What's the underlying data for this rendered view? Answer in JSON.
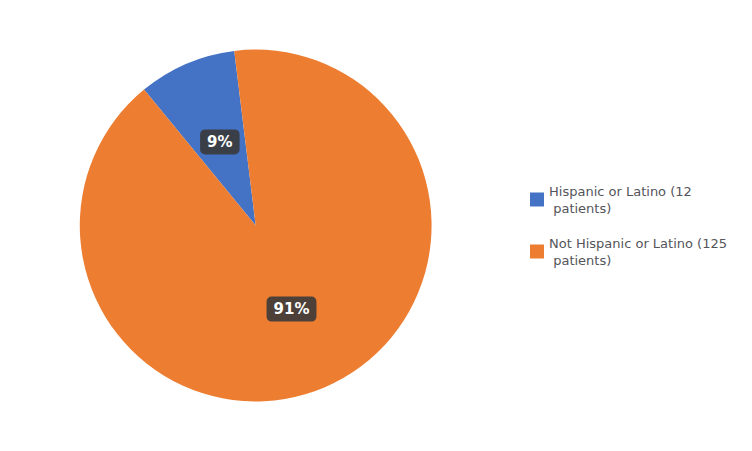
{
  "chart_data": {
    "type": "pie",
    "categories": [
      "Hispanic or Latino (12\n patients)",
      "Not Hispanic or Latino (125\n patients)"
    ],
    "values": [
      9,
      91
    ],
    "value_labels": [
      "9%",
      "91%"
    ],
    "colors": [
      "#4472c4",
      "#ed7d31"
    ],
    "data_labels": true,
    "legend": "right"
  }
}
